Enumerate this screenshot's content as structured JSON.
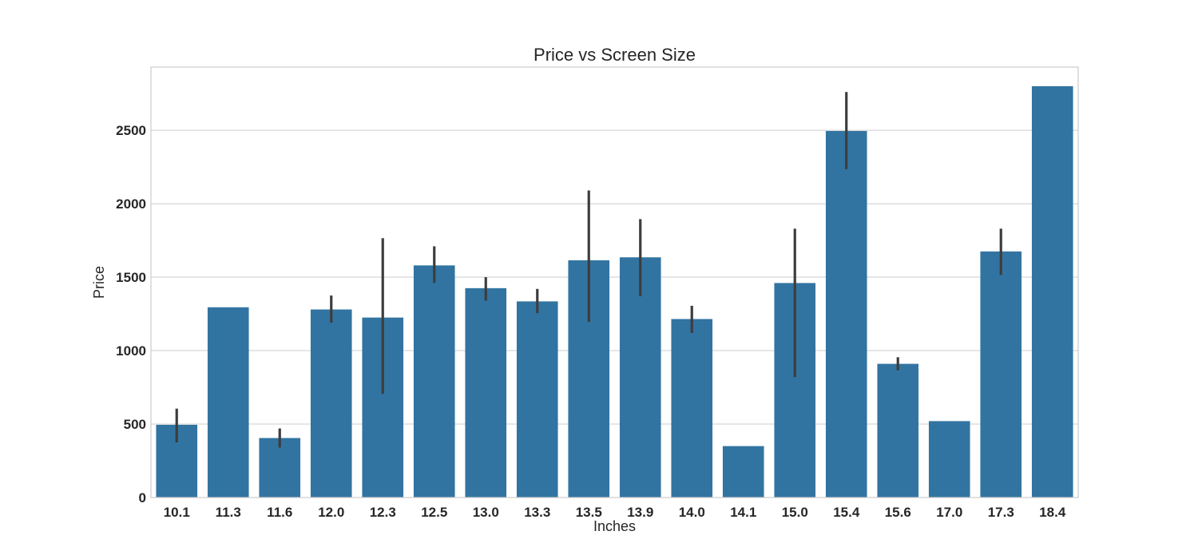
{
  "chart_data": {
    "type": "bar",
    "title": "Price vs Screen Size",
    "xlabel": "Inches",
    "ylabel": "Price",
    "categories": [
      "10.1",
      "11.3",
      "11.6",
      "12.0",
      "12.3",
      "12.5",
      "13.0",
      "13.3",
      "13.5",
      "13.9",
      "14.0",
      "14.1",
      "15.0",
      "15.4",
      "15.6",
      "17.0",
      "17.3",
      "18.4"
    ],
    "values": [
      495,
      1295,
      405,
      1280,
      1225,
      1580,
      1425,
      1335,
      1615,
      1635,
      1215,
      350,
      1460,
      2495,
      910,
      520,
      1675,
      2800
    ],
    "error_bars": [
      [
        375,
        605
      ],
      null,
      [
        340,
        470
      ],
      [
        1190,
        1375
      ],
      [
        705,
        1765
      ],
      [
        1460,
        1710
      ],
      [
        1340,
        1500
      ],
      [
        1255,
        1420
      ],
      [
        1195,
        2090
      ],
      [
        1370,
        1895
      ],
      [
        1120,
        1305
      ],
      null,
      [
        820,
        1830
      ],
      [
        2235,
        2760
      ],
      [
        865,
        955
      ],
      null,
      [
        1515,
        1830
      ],
      null
    ],
    "ylim": [
      0,
      2930
    ],
    "yticks": [
      0,
      500,
      1000,
      1500,
      2000,
      2500
    ],
    "grid": true,
    "bar_color": "#3274a1",
    "error_color": "#3d3d3d",
    "grid_color": "#cccccc",
    "spine_color": "#cccccc"
  }
}
